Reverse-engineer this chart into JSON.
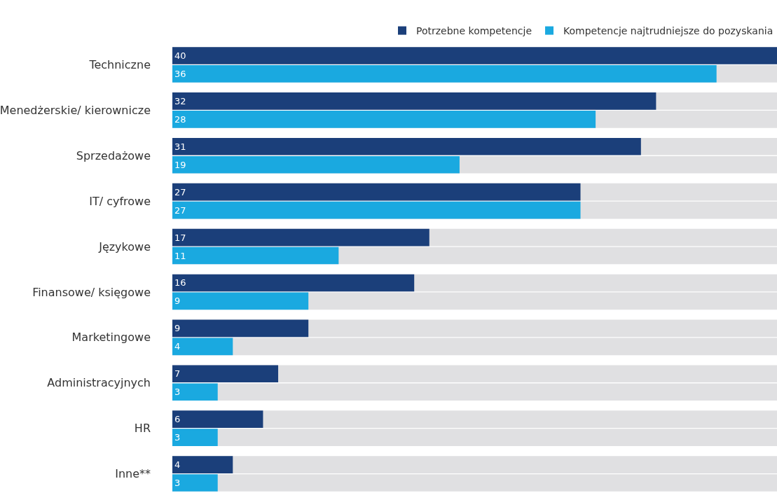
{
  "chart_data": {
    "type": "bar",
    "orientation": "horizontal",
    "categories": [
      "Techniczne",
      "Menedżerskie/ kierownicze",
      "Sprzedażowe",
      "IT/ cyfrowe",
      "Językowe",
      "Finansowe/ księgowe",
      "Marketingowe",
      "Administracyjnych",
      "HR",
      "Inne**"
    ],
    "series": [
      {
        "name": "Potrzebne kompetencje",
        "color": "#1b3f7a",
        "values": [
          40,
          32,
          31,
          27,
          17,
          16,
          9,
          7,
          6,
          4
        ]
      },
      {
        "name": "Kompetencje najtrudniejsze do pozyskania",
        "color": "#1aa9e0",
        "values": [
          36,
          28,
          19,
          27,
          11,
          9,
          4,
          3,
          3,
          3
        ]
      }
    ],
    "xlim": [
      0,
      40
    ],
    "data_labels": true,
    "tick_labels": "y",
    "grid": false,
    "legend": "top right"
  }
}
